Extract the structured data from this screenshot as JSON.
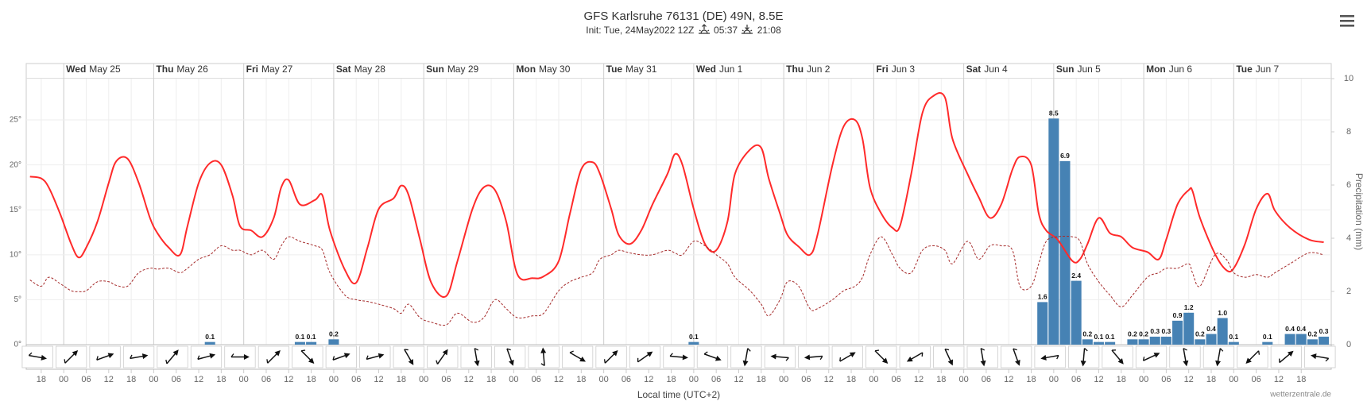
{
  "chart_data": {
    "type": "line",
    "title": "GFS Karlsruhe 76131 (DE) 49N, 8.5E",
    "subtitle": "Init: Tue, 24May2022 12Z",
    "sunrise": "05:37",
    "sunset": "21:08",
    "xlabel": "Local time (UTC+2)",
    "credit": "wetterzentrale.de",
    "xlim": [
      -4,
      344
    ],
    "xticks": [
      {
        "value": 0,
        "label": "18"
      },
      {
        "value": 6,
        "label": "00"
      },
      {
        "value": 12,
        "label": "06"
      },
      {
        "value": 18,
        "label": "12"
      },
      {
        "value": 24,
        "label": "18"
      },
      {
        "value": 30,
        "label": "00"
      },
      {
        "value": 36,
        "label": "06"
      },
      {
        "value": 42,
        "label": "12"
      },
      {
        "value": 48,
        "label": "18"
      },
      {
        "value": 54,
        "label": "00"
      },
      {
        "value": 60,
        "label": "06"
      },
      {
        "value": 66,
        "label": "12"
      },
      {
        "value": 72,
        "label": "18"
      },
      {
        "value": 78,
        "label": "00"
      },
      {
        "value": 84,
        "label": "06"
      },
      {
        "value": 90,
        "label": "12"
      },
      {
        "value": 96,
        "label": "18"
      },
      {
        "value": 102,
        "label": "00"
      },
      {
        "value": 108,
        "label": "06"
      },
      {
        "value": 114,
        "label": "12"
      },
      {
        "value": 120,
        "label": "18"
      },
      {
        "value": 126,
        "label": "00"
      },
      {
        "value": 132,
        "label": "06"
      },
      {
        "value": 138,
        "label": "12"
      },
      {
        "value": 144,
        "label": "18"
      },
      {
        "value": 150,
        "label": "00"
      },
      {
        "value": 156,
        "label": "06"
      },
      {
        "value": 162,
        "label": "12"
      },
      {
        "value": 168,
        "label": "18"
      },
      {
        "value": 174,
        "label": "00"
      },
      {
        "value": 180,
        "label": "06"
      },
      {
        "value": 186,
        "label": "12"
      },
      {
        "value": 192,
        "label": "18"
      },
      {
        "value": 198,
        "label": "00"
      },
      {
        "value": 204,
        "label": "06"
      },
      {
        "value": 210,
        "label": "12"
      },
      {
        "value": 216,
        "label": "18"
      },
      {
        "value": 222,
        "label": "00"
      },
      {
        "value": 228,
        "label": "06"
      },
      {
        "value": 234,
        "label": "12"
      },
      {
        "value": 240,
        "label": "18"
      },
      {
        "value": 246,
        "label": "00"
      },
      {
        "value": 252,
        "label": "06"
      },
      {
        "value": 258,
        "label": "12"
      },
      {
        "value": 264,
        "label": "18"
      },
      {
        "value": 270,
        "label": "00"
      },
      {
        "value": 276,
        "label": "06"
      },
      {
        "value": 282,
        "label": "12"
      },
      {
        "value": 288,
        "label": "18"
      },
      {
        "value": 294,
        "label": "00"
      },
      {
        "value": 300,
        "label": "06"
      },
      {
        "value": 306,
        "label": "12"
      },
      {
        "value": 312,
        "label": "18"
      },
      {
        "value": 318,
        "label": "00"
      },
      {
        "value": 324,
        "label": "06"
      },
      {
        "value": 330,
        "label": "12"
      },
      {
        "value": 336,
        "label": "18"
      }
    ],
    "days": [
      {
        "value": 6,
        "weekday": "Wed",
        "date": "May 25"
      },
      {
        "value": 30,
        "weekday": "Thu",
        "date": "May 26"
      },
      {
        "value": 54,
        "weekday": "Fri",
        "date": "May 27"
      },
      {
        "value": 78,
        "weekday": "Sat",
        "date": "May 28"
      },
      {
        "value": 102,
        "weekday": "Sun",
        "date": "May 29"
      },
      {
        "value": 126,
        "weekday": "Mon",
        "date": "May 30"
      },
      {
        "value": 150,
        "weekday": "Tue",
        "date": "May 31"
      },
      {
        "value": 174,
        "weekday": "Wed",
        "date": "Jun 1"
      },
      {
        "value": 198,
        "weekday": "Thu",
        "date": "Jun 2"
      },
      {
        "value": 222,
        "weekday": "Fri",
        "date": "Jun 3"
      },
      {
        "value": 246,
        "weekday": "Sat",
        "date": "Jun 4"
      },
      {
        "value": 270,
        "weekday": "Sun",
        "date": "Jun 5"
      },
      {
        "value": 294,
        "weekday": "Mon",
        "date": "Jun 6"
      },
      {
        "value": 318,
        "weekday": "Tue",
        "date": "Jun 7"
      }
    ],
    "ylim": [
      0,
      29.6
    ],
    "yticks": [
      {
        "value": 0,
        "label": "0°"
      },
      {
        "value": 5,
        "label": "5°"
      },
      {
        "value": 10,
        "label": "10°"
      },
      {
        "value": 15,
        "label": "15°"
      },
      {
        "value": 20,
        "label": "20°"
      },
      {
        "value": 25,
        "label": "25°"
      }
    ],
    "y2lim": [
      0,
      10
    ],
    "y2ticks": [
      0,
      2,
      4,
      6,
      8,
      10
    ],
    "y2label": "Precipitation (mm)",
    "grid": true,
    "x": [
      -3,
      0,
      2,
      5,
      8,
      10,
      12,
      15,
      18,
      20,
      23,
      26,
      29,
      31,
      34,
      37,
      39,
      42,
      45,
      48,
      51,
      53,
      56,
      59,
      62,
      64,
      66,
      69,
      73,
      75,
      77,
      81,
      84,
      87,
      90,
      94,
      96,
      98,
      101,
      104,
      108,
      111,
      115,
      118,
      121,
      124,
      127,
      131,
      134,
      138,
      141,
      144,
      147,
      149,
      152,
      154,
      157,
      160,
      163,
      167,
      169,
      171,
      174,
      177,
      180,
      183,
      185,
      189,
      192,
      194,
      197,
      199,
      202,
      205,
      207,
      211,
      214,
      217,
      219,
      221,
      224,
      227,
      229,
      232,
      235,
      238,
      241,
      243,
      247,
      250,
      253,
      256,
      259,
      261,
      264,
      266,
      268,
      271,
      275,
      277,
      279,
      282,
      285,
      288,
      291,
      295,
      298,
      300,
      303,
      306,
      307,
      309,
      313,
      316,
      318,
      321,
      324,
      327,
      329,
      333,
      338,
      342
    ],
    "series": [
      {
        "color": "#ff2a2a",
        "values": [
          18.7,
          18.5,
          17.5,
          14.6,
          11.2,
          9.7,
          10.8,
          13.7,
          18.0,
          20.4,
          20.7,
          18.0,
          14.1,
          12.4,
          10.8,
          10.0,
          13.2,
          18.0,
          20.2,
          20.0,
          16.6,
          13.2,
          12.7,
          12.0,
          14.1,
          17.5,
          18.3,
          15.6,
          16.1,
          16.6,
          12.7,
          8.3,
          6.9,
          10.8,
          15.1,
          16.3,
          17.7,
          16.6,
          11.7,
          6.9,
          5.4,
          9.3,
          15.1,
          17.5,
          17.2,
          13.7,
          7.8,
          7.4,
          7.6,
          9.3,
          14.6,
          19.5,
          20.3,
          19.0,
          15.1,
          12.2,
          11.2,
          12.7,
          15.6,
          19.0,
          21.2,
          20.0,
          15.1,
          11.2,
          10.5,
          13.7,
          19.0,
          21.7,
          21.9,
          18.5,
          14.6,
          12.2,
          10.9,
          10.0,
          12.2,
          20.0,
          24.3,
          25.0,
          22.9,
          17.5,
          14.6,
          13.0,
          13.2,
          19.0,
          25.8,
          27.7,
          27.5,
          22.9,
          19.0,
          16.4,
          14.1,
          15.6,
          19.5,
          20.9,
          20.0,
          14.6,
          12.7,
          11.7,
          9.3,
          9.5,
          11.2,
          14.1,
          12.4,
          12.0,
          10.8,
          10.3,
          9.5,
          11.7,
          15.6,
          17.2,
          17.1,
          14.1,
          10.1,
          8.3,
          8.5,
          11.2,
          15.1,
          16.8,
          14.9,
          13.0,
          11.7,
          11.4
        ]
      },
      {
        "color": "#a52a2a",
        "dashed": true,
        "values": [
          7.2,
          6.5,
          7.5,
          6.8,
          6.0,
          5.9,
          6.0,
          7.0,
          7.0,
          6.6,
          6.5,
          8.0,
          8.5,
          8.4,
          8.5,
          8.0,
          8.5,
          9.5,
          10.0,
          11.0,
          10.5,
          10.5,
          10.0,
          10.5,
          9.5,
          11.0,
          12.0,
          11.5,
          11.0,
          10.5,
          8.0,
          5.5,
          5.0,
          4.8,
          4.5,
          4.0,
          3.5,
          4.5,
          3.0,
          2.5,
          2.2,
          3.5,
          2.5,
          3.0,
          5.0,
          4.0,
          3.0,
          3.2,
          3.5,
          6.0,
          7.0,
          7.5,
          8.0,
          9.5,
          10.0,
          10.5,
          10.2,
          10.0,
          10.0,
          10.5,
          10.2,
          10.0,
          11.5,
          11.0,
          10.0,
          9.0,
          7.5,
          6.0,
          4.5,
          3.2,
          5.0,
          7.0,
          6.5,
          4.0,
          4.0,
          5.0,
          6.0,
          6.5,
          7.5,
          10.0,
          12.0,
          10.0,
          8.5,
          8.0,
          10.5,
          11.0,
          10.5,
          9.0,
          11.5,
          9.5,
          11.0,
          11.0,
          10.5,
          6.5,
          6.5,
          9.0,
          11.5,
          12.0,
          12.0,
          11.5,
          9.0,
          7.0,
          5.5,
          4.2,
          5.5,
          7.5,
          8.0,
          8.5,
          8.5,
          9.0,
          8.0,
          6.5,
          10.0,
          9.5,
          8.0,
          7.5,
          7.8,
          7.5,
          8.0,
          9.0,
          10.2,
          10.0
        ]
      },
      {
        "type": "bar",
        "axis": "y2",
        "color": "#4682b4",
        "x": [
          45,
          69,
          72,
          78,
          174,
          267,
          270,
          273,
          276,
          279,
          282,
          285,
          291,
          294,
          297,
          300,
          303,
          306,
          309,
          312,
          315,
          318,
          327,
          333,
          336,
          339,
          342
        ],
        "values": [
          0.1,
          0.1,
          0.1,
          0.2,
          0.1,
          1.6,
          8.5,
          6.9,
          2.4,
          0.2,
          0.1,
          0.1,
          0.2,
          0.2,
          0.3,
          0.3,
          0.9,
          1.2,
          0.2,
          0.4,
          1,
          0.1,
          0.1,
          0.4,
          0.4,
          0.2,
          0.3
        ],
        "value_labels": [
          "0.1",
          "0.1",
          "0.1",
          "0.2",
          "0.1",
          "1.6",
          "8.5",
          "6.9",
          "2.4",
          "0.2",
          "0.1",
          "0.1",
          "0.2",
          "0.2",
          "0.3",
          "0.3",
          "0.9",
          "1.2",
          "0.2",
          "0.4",
          "1.0",
          "0.1",
          "0.1",
          "0.4",
          "0.4",
          "0.2",
          "0.3"
        ]
      }
    ],
    "wind": {
      "x": [
        -1,
        8,
        17,
        26,
        35,
        44,
        53,
        62,
        71,
        80,
        89,
        98,
        107,
        116,
        125,
        134,
        143,
        152,
        161,
        170,
        179,
        188,
        197,
        206,
        215,
        224,
        233,
        242,
        251,
        260,
        269,
        278,
        287,
        296,
        305,
        314,
        323,
        332,
        341
      ],
      "direction": [
        100,
        45,
        70,
        80,
        40,
        75,
        90,
        45,
        135,
        70,
        75,
        150,
        35,
        170,
        160,
        355,
        120,
        45,
        55,
        95,
        110,
        190,
        275,
        265,
        60,
        135,
        240,
        155,
        170,
        160,
        260,
        185,
        140,
        65,
        170,
        190,
        225,
        50,
        280
      ]
    }
  }
}
